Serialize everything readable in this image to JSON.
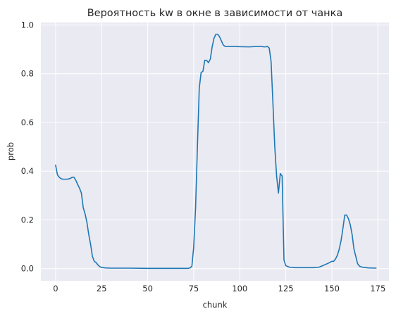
{
  "chart_data": {
    "type": "line",
    "title": "Вероятность kw в окне в зависимости от чанка",
    "xlabel": "chunk",
    "ylabel": "prob",
    "xlim": [
      -8,
      181
    ],
    "ylim": [
      -0.05,
      1.01
    ],
    "xticks": [
      0,
      25,
      50,
      75,
      100,
      125,
      150,
      175
    ],
    "yticks": [
      0.0,
      0.2,
      0.4,
      0.6,
      0.8,
      1.0
    ],
    "xtick_labels": [
      "0",
      "25",
      "50",
      "75",
      "100",
      "125",
      "150",
      "175"
    ],
    "ytick_labels": [
      "0.0",
      "0.2",
      "0.4",
      "0.6",
      "0.8",
      "1.0"
    ],
    "grid": true,
    "background": "#eaeaf2",
    "series": [
      {
        "color": "#1f77b4",
        "x": [
          0,
          1,
          2,
          3,
          4,
          5,
          6,
          7,
          8,
          9,
          10,
          11,
          12,
          13,
          14,
          15,
          16,
          17,
          18,
          19,
          20,
          21,
          22,
          23,
          24,
          25,
          27,
          30,
          35,
          40,
          50,
          60,
          65,
          70,
          72,
          73,
          74,
          75,
          76,
          77,
          78,
          79,
          80,
          81,
          82,
          83,
          84,
          85,
          86,
          87,
          88,
          89,
          90,
          91,
          92,
          93,
          95,
          100,
          105,
          110,
          112,
          113,
          114,
          115,
          116,
          117,
          118,
          119,
          120,
          121,
          122,
          123,
          124,
          125,
          127,
          130,
          135,
          140,
          143,
          145,
          148,
          150,
          151,
          152,
          153,
          154,
          155,
          156,
          157,
          158,
          159,
          160,
          161,
          162,
          163,
          164,
          165,
          167,
          170,
          174
        ],
        "y": [
          0.425,
          0.385,
          0.375,
          0.369,
          0.367,
          0.367,
          0.367,
          0.368,
          0.37,
          0.375,
          0.375,
          0.362,
          0.345,
          0.33,
          0.31,
          0.25,
          0.225,
          0.19,
          0.14,
          0.1,
          0.05,
          0.03,
          0.025,
          0.015,
          0.008,
          0.005,
          0.003,
          0.002,
          0.002,
          0.002,
          0.001,
          0.001,
          0.001,
          0.001,
          0.001,
          0.003,
          0.01,
          0.09,
          0.25,
          0.5,
          0.74,
          0.805,
          0.81,
          0.855,
          0.855,
          0.845,
          0.86,
          0.91,
          0.945,
          0.962,
          0.962,
          0.952,
          0.935,
          0.918,
          0.912,
          0.912,
          0.912,
          0.911,
          0.91,
          0.912,
          0.912,
          0.91,
          0.91,
          0.912,
          0.905,
          0.85,
          0.68,
          0.5,
          0.38,
          0.31,
          0.39,
          0.38,
          0.035,
          0.012,
          0.006,
          0.004,
          0.004,
          0.004,
          0.006,
          0.012,
          0.022,
          0.03,
          0.03,
          0.04,
          0.055,
          0.08,
          0.115,
          0.165,
          0.22,
          0.22,
          0.205,
          0.18,
          0.14,
          0.08,
          0.05,
          0.02,
          0.01,
          0.005,
          0.003,
          0.002
        ]
      }
    ]
  }
}
